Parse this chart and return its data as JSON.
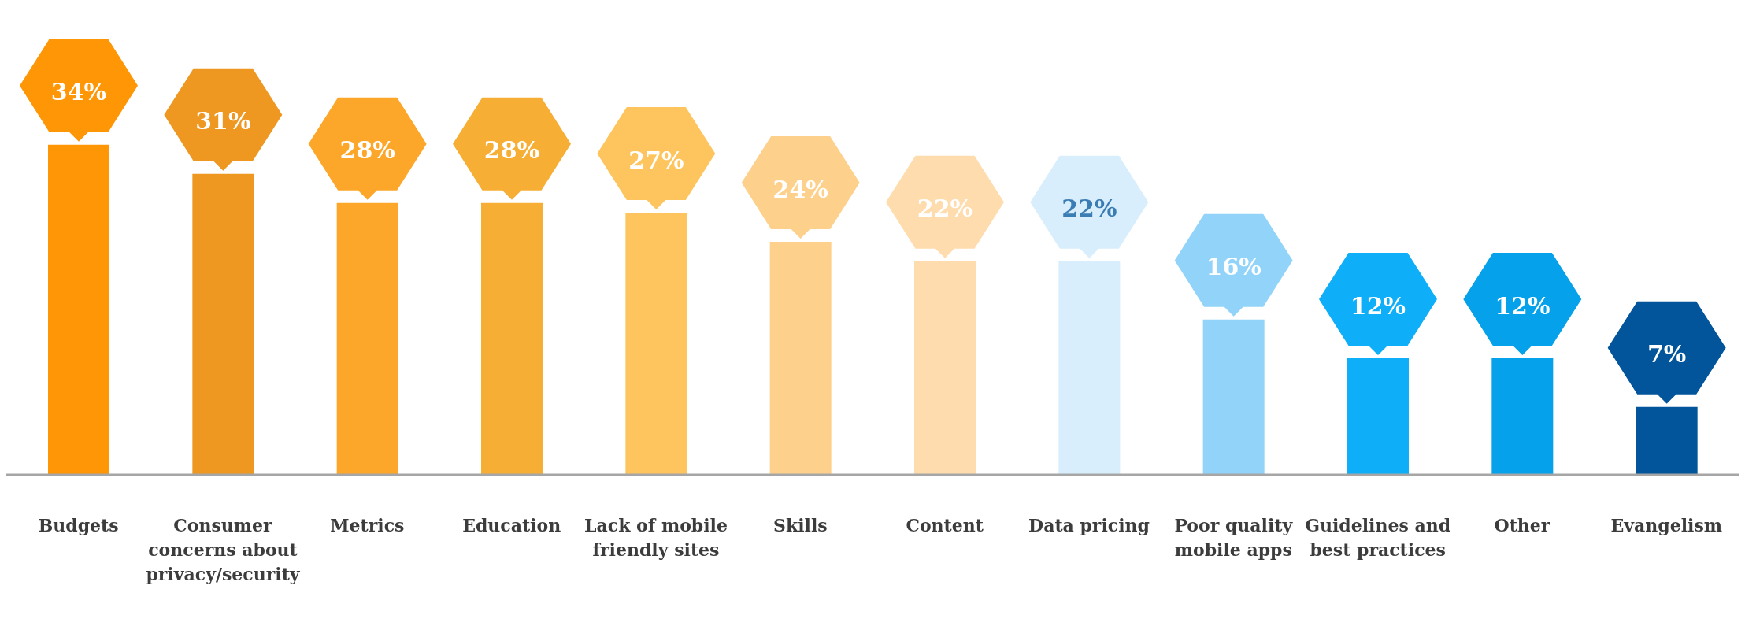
{
  "chart_data": {
    "type": "bar",
    "categories": [
      "Budgets",
      "Consumer concerns about privacy/security",
      "Metrics",
      "Education",
      "Lack of mobile friendly sites",
      "Skills",
      "Content",
      "Data pricing",
      "Poor quality mobile apps",
      "Guidelines and best practices",
      "Other",
      "Evangelism"
    ],
    "values": [
      34,
      31,
      28,
      28,
      27,
      24,
      22,
      22,
      16,
      12,
      12,
      7
    ],
    "value_labels": [
      "34%",
      "31%",
      "28%",
      "28%",
      "27%",
      "24%",
      "22%",
      "22%",
      "16%",
      "12%",
      "12%",
      "7%"
    ],
    "colors": [
      "#ff9605",
      "#ee9822",
      "#fda72a",
      "#f7ae34",
      "#fec55f",
      "#fdd18c",
      "#fedcad",
      "#d9eefc",
      "#92d4f9",
      "#0faef8",
      "#05a1ea",
      "#02559b"
    ],
    "grid": false,
    "legend": false
  }
}
